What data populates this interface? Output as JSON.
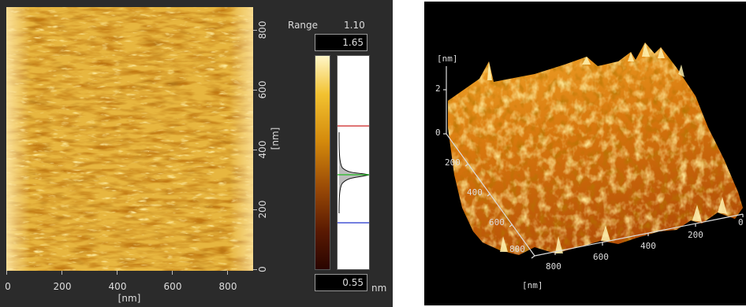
{
  "left_panel": {
    "x_ticks": [
      "0",
      "200",
      "400",
      "600",
      "800"
    ],
    "x_unit": "[nm]",
    "y_ticks": [
      "0",
      "200",
      "400",
      "600",
      "800"
    ],
    "y_unit": "[nm]",
    "range_label": "Range",
    "range_value": "1.10",
    "max_value": "1.65",
    "min_value": "0.55",
    "unit_nm": "nm",
    "marker_colors": {
      "upper": "#cc2222",
      "middle": "#22bb22",
      "lower": "#2233cc"
    }
  },
  "right_panel": {
    "z_unit": "[nm]",
    "z_ticks": [
      "2",
      "0"
    ],
    "y_axis_ticks": [
      "200",
      "400",
      "600",
      "800"
    ],
    "x_axis_ticks": [
      "800",
      "600",
      "400",
      "200",
      "0"
    ],
    "bottom_unit": "[nm]"
  },
  "colors": {
    "surface_light": "#f6c040",
    "surface_dark": "#7a3300",
    "background_3d": "#000000",
    "panel_bg": "#2b2b2b"
  }
}
